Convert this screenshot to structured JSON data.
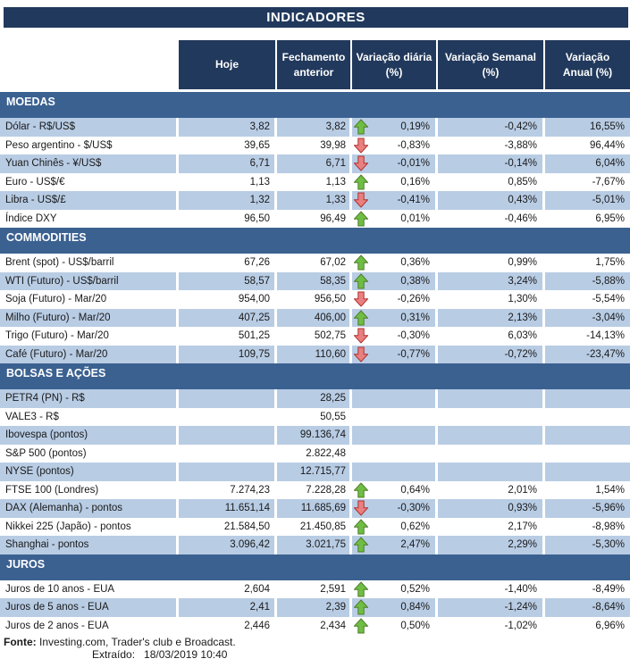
{
  "title": "INDICADORES",
  "columns": [
    "Hoje",
    "Fechamento\nanterior",
    "Variação diária\n(%)",
    "Variação Semanal\n(%)",
    "Variação\nAnual (%)"
  ],
  "colors": {
    "navy": "#21395C",
    "section_blue": "#3B6191",
    "row_shaded": "#B8CCE4",
    "trend_up_fill": "#6FBE44",
    "trend_up_stroke": "#4F7B29",
    "trend_down_fill": "#E9807F",
    "trend_down_stroke": "#B02F2E"
  },
  "sections": [
    {
      "name": "MOEDAS",
      "rows": [
        {
          "label": "Dólar - R$/US$",
          "today": "3,82",
          "previous": "3,82",
          "trend": "up",
          "daily": "0,19%",
          "weekly": "-0,42%",
          "annual": "16,55%"
        },
        {
          "label": "Peso argentino - $/US$",
          "today": "39,65",
          "previous": "39,98",
          "trend": "down",
          "daily": "-0,83%",
          "weekly": "-3,88%",
          "annual": "96,44%"
        },
        {
          "label": "Yuan Chinês - ¥/US$",
          "today": "6,71",
          "previous": "6,71",
          "trend": "down",
          "daily": "-0,01%",
          "weekly": "-0,14%",
          "annual": "6,04%"
        },
        {
          "label": "Euro - US$/€",
          "today": "1,13",
          "previous": "1,13",
          "trend": "up",
          "daily": "0,16%",
          "weekly": "0,85%",
          "annual": "-7,67%"
        },
        {
          "label": "Libra - US$/£",
          "today": "1,32",
          "previous": "1,33",
          "trend": "down",
          "daily": "-0,41%",
          "weekly": "0,43%",
          "annual": "-5,01%"
        },
        {
          "label": "Índice DXY",
          "today": "96,50",
          "previous": "96,49",
          "trend": "up",
          "daily": "0,01%",
          "weekly": "-0,46%",
          "annual": "6,95%"
        }
      ]
    },
    {
      "name": "COMMODITIES",
      "rows": [
        {
          "label": "Brent (spot) - US$/barril",
          "today": "67,26",
          "previous": "67,02",
          "trend": "up",
          "daily": "0,36%",
          "weekly": "0,99%",
          "annual": "1,75%"
        },
        {
          "label": "WTI (Futuro) - US$/barril",
          "today": "58,57",
          "previous": "58,35",
          "trend": "up",
          "daily": "0,38%",
          "weekly": "3,24%",
          "annual": "-5,88%"
        },
        {
          "label": "Soja (Futuro) - Mar/20",
          "today": "954,00",
          "previous": "956,50",
          "trend": "down",
          "daily": "-0,26%",
          "weekly": "1,30%",
          "annual": "-5,54%"
        },
        {
          "label": "Milho (Futuro) - Mar/20",
          "today": "407,25",
          "previous": "406,00",
          "trend": "up",
          "daily": "0,31%",
          "weekly": "2,13%",
          "annual": "-3,04%"
        },
        {
          "label": "Trigo (Futuro) - Mar/20",
          "today": "501,25",
          "previous": "502,75",
          "trend": "down",
          "daily": "-0,30%",
          "weekly": "6,03%",
          "annual": "-14,13%"
        },
        {
          "label": "Café (Futuro) - Mar/20",
          "today": "109,75",
          "previous": "110,60",
          "trend": "down",
          "daily": "-0,77%",
          "weekly": "-0,72%",
          "annual": "-23,47%"
        }
      ]
    },
    {
      "name": "BOLSAS E AÇÕES",
      "rows": [
        {
          "label": "PETR4 (PN) - R$",
          "today": "",
          "previous": "28,25",
          "trend": null,
          "daily": "",
          "weekly": "",
          "annual": ""
        },
        {
          "label": "VALE3 - R$",
          "today": "",
          "previous": "50,55",
          "trend": null,
          "daily": "",
          "weekly": "",
          "annual": ""
        },
        {
          "label": "Ibovespa (pontos)",
          "today": "",
          "previous": "99.136,74",
          "trend": null,
          "daily": "",
          "weekly": "",
          "annual": ""
        },
        {
          "label": "S&P 500 (pontos)",
          "today": "",
          "previous": "2.822,48",
          "trend": null,
          "daily": "",
          "weekly": "",
          "annual": ""
        },
        {
          "label": "NYSE (pontos)",
          "today": "",
          "previous": "12.715,77",
          "trend": null,
          "daily": "",
          "weekly": "",
          "annual": ""
        },
        {
          "label": "FTSE 100 (Londres)",
          "today": "7.274,23",
          "previous": "7.228,28",
          "trend": "up",
          "daily": "0,64%",
          "weekly": "2,01%",
          "annual": "1,54%"
        },
        {
          "label": "DAX (Alemanha) - pontos",
          "today": "11.651,14",
          "previous": "11.685,69",
          "trend": "down",
          "daily": "-0,30%",
          "weekly": "0,93%",
          "annual": "-5,96%"
        },
        {
          "label": "Nikkei 225 (Japão) - pontos",
          "today": "21.584,50",
          "previous": "21.450,85",
          "trend": "up",
          "daily": "0,62%",
          "weekly": "2,17%",
          "annual": "-8,98%"
        },
        {
          "label": "Shanghai - pontos",
          "today": "3.096,42",
          "previous": "3.021,75",
          "trend": "up",
          "daily": "2,47%",
          "weekly": "2,29%",
          "annual": "-5,30%"
        }
      ]
    },
    {
      "name": "JUROS",
      "rows": [
        {
          "label": "Juros de 10 anos - EUA",
          "today": "2,604",
          "previous": "2,591",
          "trend": "up",
          "daily": "0,52%",
          "weekly": "-1,40%",
          "annual": "-8,49%"
        },
        {
          "label": "Juros de 5 anos - EUA",
          "today": "2,41",
          "previous": "2,39",
          "trend": "up",
          "daily": "0,84%",
          "weekly": "-1,24%",
          "annual": "-8,64%"
        },
        {
          "label": "Juros de 2 anos - EUA",
          "today": "2,446",
          "previous": "2,434",
          "trend": "up",
          "daily": "0,50%",
          "weekly": "-1,02%",
          "annual": "6,96%"
        }
      ]
    }
  ],
  "footer": {
    "source_label": "Fonte:",
    "source_text": " Investing.com, Trader's club e Broadcast.",
    "extracted_label": "Extraído:",
    "extracted_value": "18/03/2019 10:40"
  }
}
